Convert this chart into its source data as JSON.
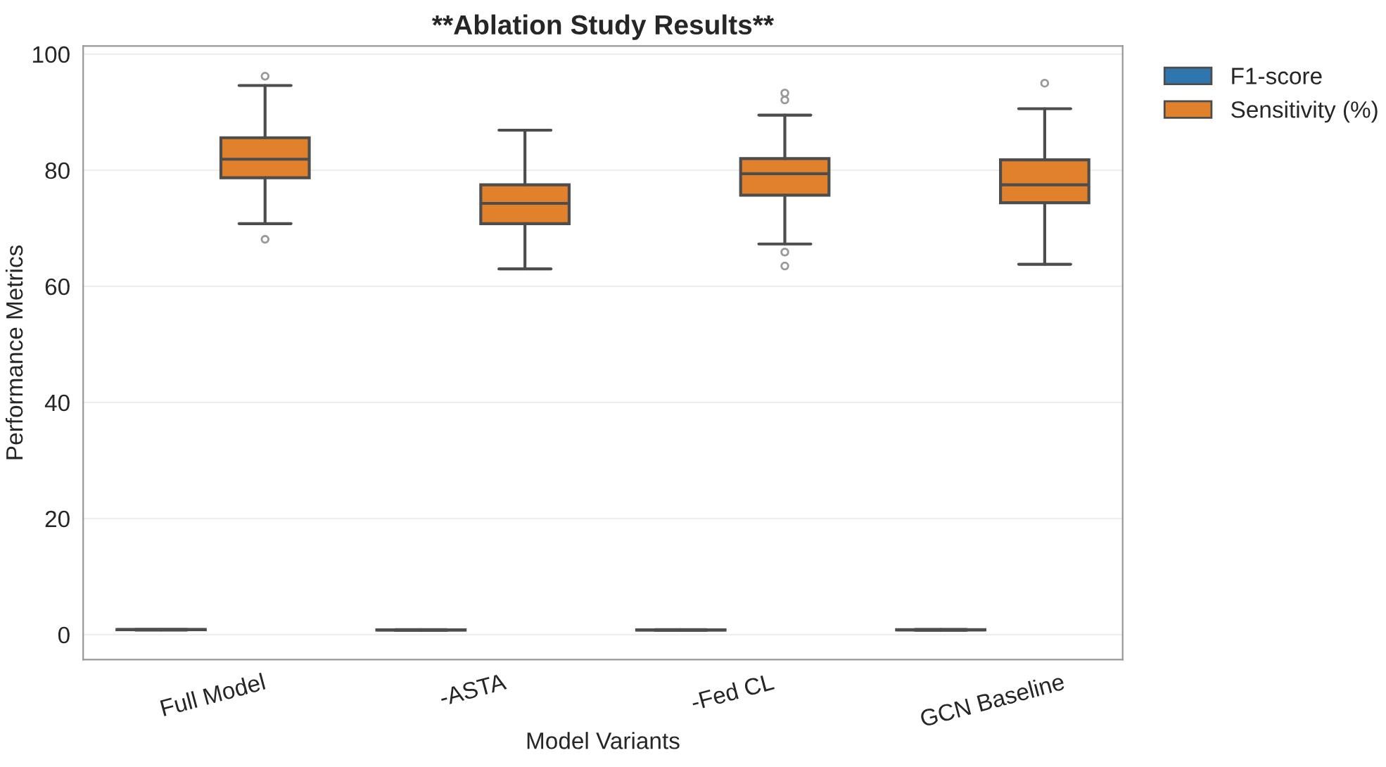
{
  "chart_data": {
    "type": "box",
    "title": "**Ablation Study Results**",
    "xlabel": "Model Variants",
    "ylabel": "Performance Metrics",
    "categories": [
      "Full Model",
      "-ASTA",
      "-Fed CL",
      "GCN Baseline"
    ],
    "series": [
      {
        "name": "F1-score",
        "color": "#2f76ae",
        "boxes": [
          {
            "low": 0.8,
            "q1": 0.84,
            "median": 0.86,
            "q3": 0.88,
            "high": 0.9
          },
          {
            "low": 0.75,
            "q1": 0.8,
            "median": 0.82,
            "q3": 0.84,
            "high": 0.87
          },
          {
            "low": 0.76,
            "q1": 0.8,
            "median": 0.82,
            "q3": 0.84,
            "high": 0.87
          },
          {
            "low": 0.77,
            "q1": 0.81,
            "median": 0.83,
            "q3": 0.85,
            "high": 0.88
          }
        ]
      },
      {
        "name": "Sensitivity (%)",
        "color": "#e2812b",
        "boxes": [
          {
            "low": 70.8,
            "q1": 78.7,
            "median": 81.9,
            "q3": 85.6,
            "high": 94.6,
            "outliers": [
              96.2,
              68.1
            ]
          },
          {
            "low": 63.0,
            "q1": 70.8,
            "median": 74.3,
            "q3": 77.5,
            "high": 86.9
          },
          {
            "low": 67.3,
            "q1": 75.7,
            "median": 79.4,
            "q3": 82.0,
            "high": 89.5,
            "outliers": [
              93.3,
              92.1,
              65.9,
              63.5
            ]
          },
          {
            "low": 63.8,
            "q1": 74.4,
            "median": 77.5,
            "q3": 81.8,
            "high": 90.6,
            "outliers": [
              95.0
            ]
          }
        ]
      }
    ],
    "ylim": [
      -4.3,
      101.4
    ],
    "yticks": [
      0,
      20,
      40,
      60,
      80,
      100
    ],
    "grid": "y",
    "legend": "right"
  }
}
